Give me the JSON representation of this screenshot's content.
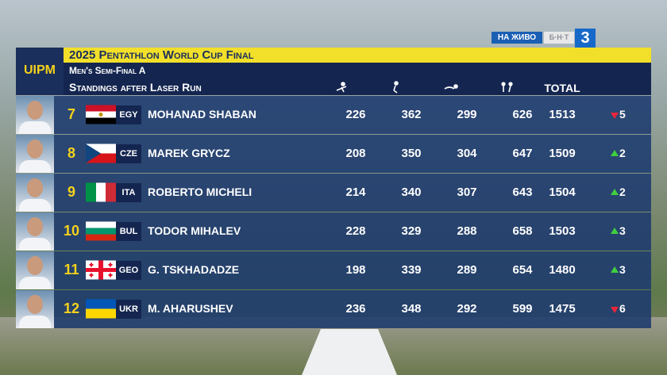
{
  "broadcast": {
    "live": "НА ЖИВО",
    "network": "Б·Н·Т",
    "channel": "3"
  },
  "header": {
    "logo": "UIPM",
    "title": "2025 Pentathlon World Cup Final",
    "subtitle": "Men's Semi-Final A",
    "heading": "Standings after Laser Run",
    "total_label": "TOTAL"
  },
  "table": {
    "rows": [
      {
        "rank": 7,
        "country": "EGY",
        "name": "MOHANAD SHABAN",
        "scores": [
          226,
          362,
          299,
          626
        ],
        "total": 1513,
        "change": {
          "direction": "down",
          "value": 5
        }
      },
      {
        "rank": 8,
        "country": "CZE",
        "name": "MAREK GRYCZ",
        "scores": [
          208,
          350,
          304,
          647
        ],
        "total": 1509,
        "change": {
          "direction": "up",
          "value": 2
        }
      },
      {
        "rank": 9,
        "country": "ITA",
        "name": "ROBERTO MICHELI",
        "scores": [
          214,
          340,
          307,
          643
        ],
        "total": 1504,
        "change": {
          "direction": "up",
          "value": 2
        }
      },
      {
        "rank": 10,
        "country": "BUL",
        "name": "TODOR MIHALEV",
        "scores": [
          228,
          329,
          288,
          658
        ],
        "total": 1503,
        "change": {
          "direction": "up",
          "value": 3
        }
      },
      {
        "rank": 11,
        "country": "GEO",
        "name": "G. TSKHADADZE",
        "scores": [
          198,
          339,
          289,
          654
        ],
        "total": 1480,
        "change": {
          "direction": "up",
          "value": 3
        }
      },
      {
        "rank": 12,
        "country": "UKR",
        "name": "M. AHARUSHEV",
        "scores": [
          236,
          348,
          292,
          599
        ],
        "total": 1475,
        "change": {
          "direction": "down",
          "value": 6
        }
      }
    ]
  }
}
